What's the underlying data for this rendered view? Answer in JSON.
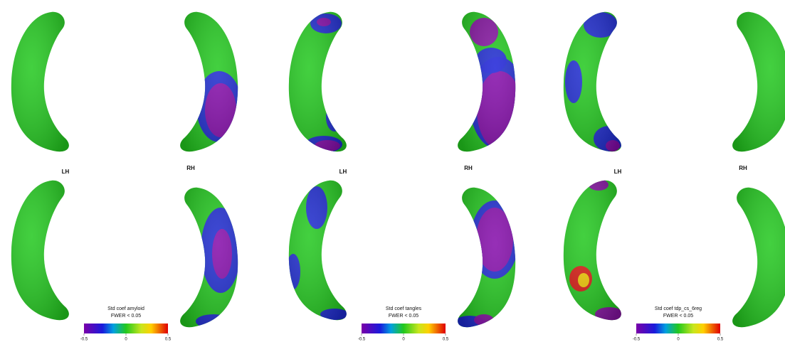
{
  "panels": [
    {
      "labels": [
        "LH",
        "RH"
      ],
      "colorbar": {
        "title": "Std coef amyloid",
        "subtitle": "FWER < 0.05",
        "ticks": [
          -0.5,
          0,
          0.5
        ]
      }
    },
    {
      "labels": [
        "LH",
        "RH"
      ],
      "colorbar": {
        "title": "Std coef tangles",
        "subtitle": "FWER < 0.05",
        "ticks": [
          -0.5,
          0,
          0.5
        ]
      }
    },
    {
      "labels": [
        "LH",
        "RH"
      ],
      "colorbar": {
        "title": "Std coef tdp_cs_6reg",
        "subtitle": "FWER < 0.05",
        "ticks": [
          -0.5,
          0,
          0.5
        ]
      }
    }
  ]
}
